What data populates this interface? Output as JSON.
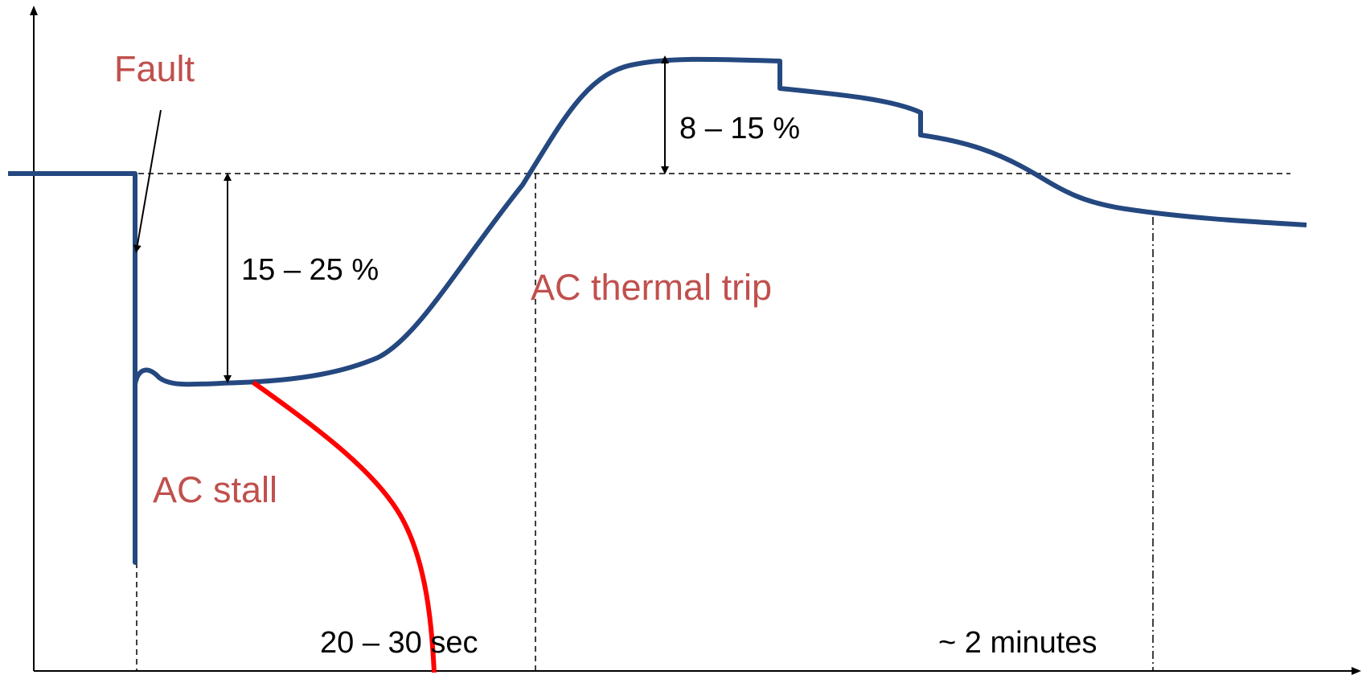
{
  "colors": {
    "voltage_curve": "#24487f",
    "collapse_curve": "#ff0000",
    "annotation_red": "#c0504d",
    "axis": "#000000"
  },
  "annotations": {
    "fault": "Fault",
    "ac_stall": "AC stall",
    "ac_thermal_trip": "AC thermal trip",
    "dip": "15 – 25 %",
    "overshoot": "8 – 15 %",
    "stall_duration": "20 – 30 sec",
    "recovery_duration": "~ 2 minutes"
  }
}
